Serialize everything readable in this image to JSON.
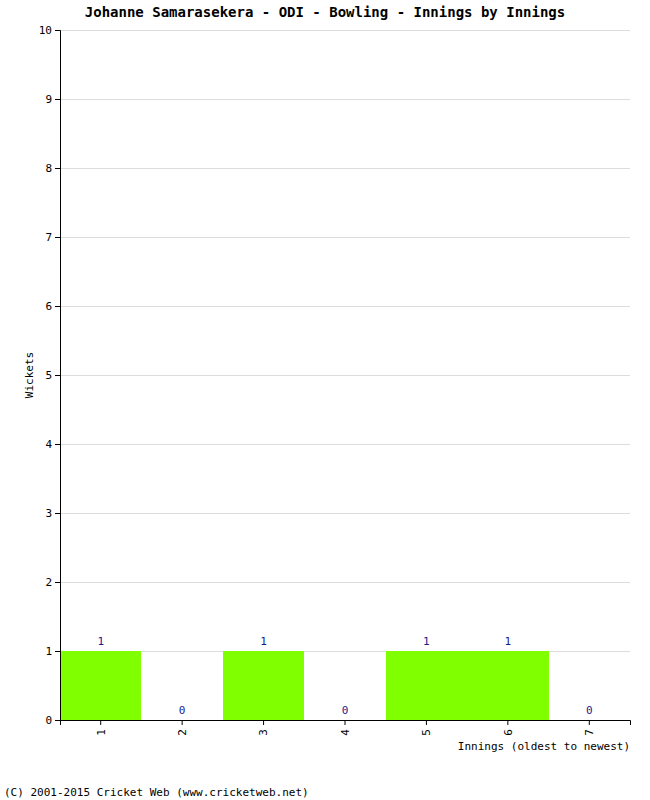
{
  "chart_data": {
    "type": "bar",
    "title": "Johanne Samarasekera - ODI - Bowling - Innings by Innings",
    "x_label": "Innings (oldest to newest)",
    "y_label": "Wickets",
    "annotations": [
      "(C) 2001-2015 Cricket Web (www.cricketweb.net)"
    ],
    "categories": [
      "1",
      "2",
      "3",
      "4",
      "5",
      "6",
      "7"
    ],
    "values": [
      1,
      0,
      1,
      0,
      1,
      1,
      0
    ],
    "color": "#80ff00",
    "ylim": [
      0,
      10
    ],
    "yticks": [
      0,
      1,
      2,
      3,
      4,
      5,
      6,
      7,
      8,
      9,
      10
    ],
    "grid": true,
    "data_labels": true
  }
}
